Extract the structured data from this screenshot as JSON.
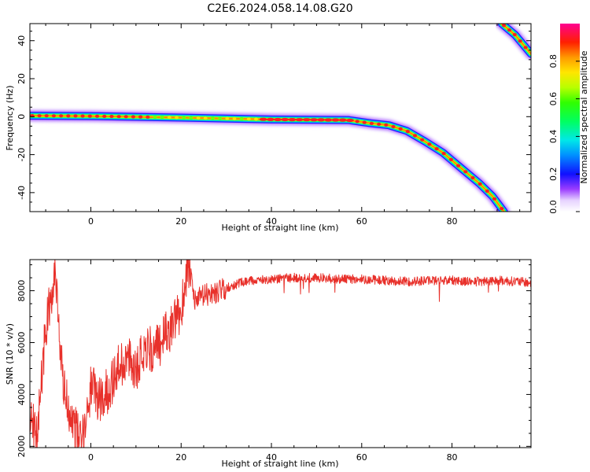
{
  "figure": {
    "title": "C2E6.2024.058.14.08.G20"
  },
  "chart_data": [
    {
      "type": "heatmap",
      "xlabel": "Height of straight line (km)",
      "ylabel": "Frequency (Hz)",
      "xlim": [
        -13.5,
        97.5
      ],
      "ylim": [
        -50,
        49
      ],
      "xticks": [
        0,
        20,
        40,
        60,
        80
      ],
      "yticks": [
        -40,
        -20,
        0,
        20,
        40
      ],
      "colorbar": {
        "label": "Normalized spectral amplitude",
        "range": [
          0,
          1
        ],
        "ticks": [
          "0.0",
          "0.2",
          "0.4",
          "0.6",
          "0.8"
        ],
        "colormap": "gist_ncar_r"
      },
      "traces": [
        {
          "points": [
            [
              -13.5,
              0.5
            ],
            [
              0,
              0.3
            ],
            [
              20,
              -0.5
            ],
            [
              40,
              -1.5
            ],
            [
              57,
              -1.8
            ],
            [
              62,
              -3.5
            ],
            [
              66,
              -4.5
            ],
            [
              70,
              -7.5
            ],
            [
              74,
              -13
            ],
            [
              78,
              -19
            ],
            [
              82,
              -27
            ],
            [
              86,
              -35
            ],
            [
              89,
              -42
            ],
            [
              91.5,
              -50
            ]
          ]
        },
        {
          "points": [
            [
              91,
              49
            ],
            [
              94,
              43
            ],
            [
              97.5,
              33
            ]
          ]
        }
      ]
    },
    {
      "type": "line",
      "xlabel": "Height of straight line (km)",
      "ylabel": "SNR (10 * v/v)",
      "xlim": [
        -13.5,
        97.5
      ],
      "ylim": [
        1950,
        9200
      ],
      "xticks": [
        0,
        20,
        40,
        60,
        80
      ],
      "yticks": [
        2000,
        4000,
        6000,
        8000
      ],
      "color": "#e8302a",
      "trend": [
        [
          -13.5,
          3300
        ],
        [
          -12,
          2300
        ],
        [
          -10,
          6500
        ],
        [
          -8,
          8700
        ],
        [
          -6,
          4200
        ],
        [
          -4,
          3000
        ],
        [
          -2,
          2100
        ],
        [
          0,
          4300
        ],
        [
          2,
          3800
        ],
        [
          4,
          4200
        ],
        [
          6,
          5000
        ],
        [
          8,
          5400
        ],
        [
          10,
          5000
        ],
        [
          12,
          5900
        ],
        [
          14,
          5600
        ],
        [
          16,
          6200
        ],
        [
          18,
          6600
        ],
        [
          20,
          7200
        ],
        [
          21.5,
          9100
        ],
        [
          23,
          7600
        ],
        [
          25,
          7800
        ],
        [
          27,
          7900
        ],
        [
          30,
          8100
        ],
        [
          33,
          8300
        ],
        [
          36,
          8400
        ],
        [
          40,
          8450
        ],
        [
          45,
          8500
        ],
        [
          50,
          8500
        ],
        [
          55,
          8450
        ],
        [
          60,
          8450
        ],
        [
          65,
          8400
        ],
        [
          70,
          8350
        ],
        [
          75,
          8400
        ],
        [
          80,
          8400
        ],
        [
          85,
          8350
        ],
        [
          90,
          8400
        ],
        [
          95,
          8350
        ],
        [
          97.5,
          8300
        ]
      ]
    }
  ]
}
